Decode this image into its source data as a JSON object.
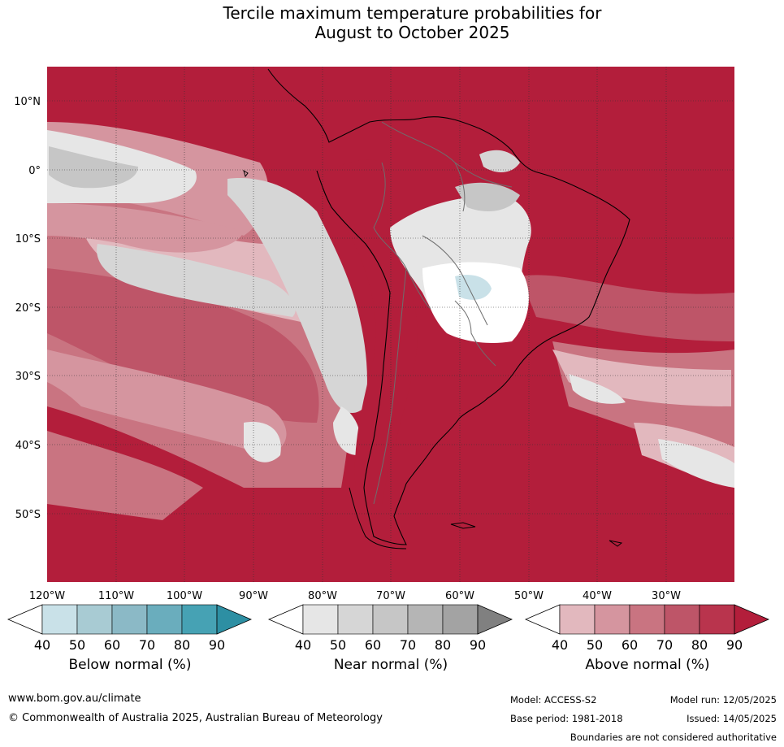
{
  "title_line1": "Tercile maximum temperature probabilities for",
  "title_line2": "August to October 2025",
  "lat_labels": [
    "10°N",
    "0°",
    "10°S",
    "20°S",
    "30°S",
    "40°S",
    "50°S"
  ],
  "lon_labels": [
    "120°W",
    "110°W",
    "100°W",
    "90°W",
    "80°W",
    "70°W",
    "60°W",
    "50°W",
    "40°W",
    "30°W"
  ],
  "colorbars": {
    "below": {
      "title": "Below normal (%)",
      "ticks": [
        "40",
        "50",
        "60",
        "70",
        "80",
        "90"
      ],
      "colors": [
        "#ffffff",
        "#c9e1e8",
        "#a8cbd3",
        "#8bb9c6",
        "#6aadbd",
        "#46a2b4",
        "#2d8fa3"
      ]
    },
    "near": {
      "title": "Near normal (%)",
      "ticks": [
        "40",
        "50",
        "60",
        "70",
        "80",
        "90"
      ],
      "colors": [
        "#ffffff",
        "#e6e6e6",
        "#d6d6d6",
        "#c6c6c6",
        "#b5b5b5",
        "#a3a3a3",
        "#808080"
      ]
    },
    "above": {
      "title": "Above normal (%)",
      "ticks": [
        "40",
        "50",
        "60",
        "70",
        "80",
        "90"
      ],
      "colors": [
        "#ffffff",
        "#e2b8be",
        "#d5959f",
        "#c97481",
        "#be5568",
        "#b9344d",
        "#b31e3b"
      ]
    }
  },
  "footer": {
    "website": "www.bom.gov.au/climate",
    "copyright": "© Commonwealth of Australia 2025, Australian Bureau of Meteorology",
    "model": "Model: ACCESS-S2",
    "base_period": "Base period: 1981-2018",
    "model_run": "Model run: 12/05/2025",
    "issued": "Issued: 14/05/2025",
    "boundaries": "Boundaries are not considered authoritative"
  }
}
